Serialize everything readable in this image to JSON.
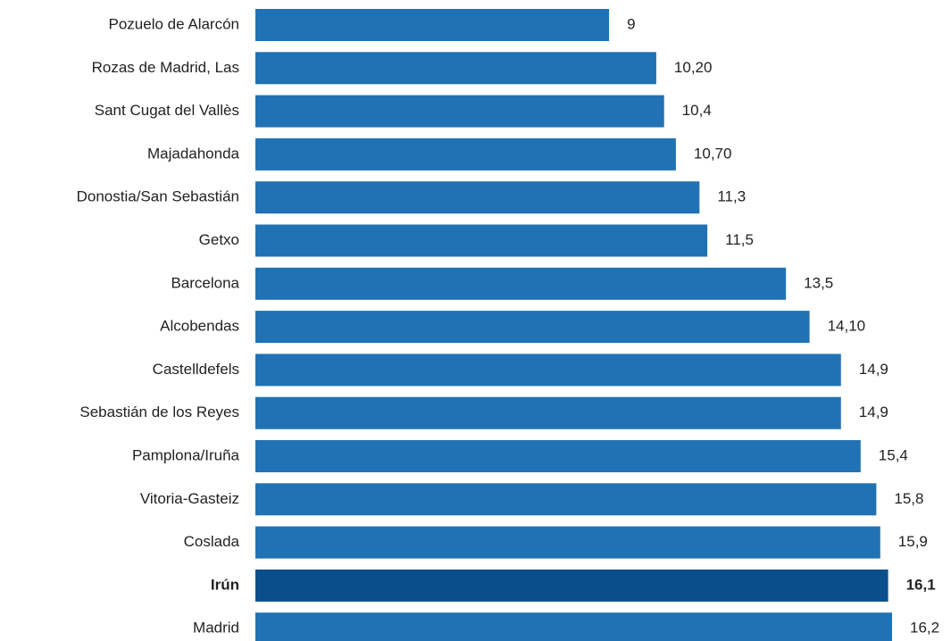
{
  "chart_data": {
    "type": "barh",
    "categories": [
      "Pozuelo de Alarcón",
      "Rozas de Madrid, Las",
      "Sant Cugat del Vallès",
      "Majadahonda",
      "Donostia/San Sebastián",
      "Getxo",
      "Barcelona",
      "Alcobendas",
      "Castelldefels",
      "Sebastián de los Reyes",
      "Pamplona/Iruña",
      "Vitoria-Gasteiz",
      "Coslada",
      "Irún",
      "Madrid"
    ],
    "values": [
      9,
      10.2,
      10.4,
      10.7,
      11.3,
      11.5,
      13.5,
      14.1,
      14.9,
      14.9,
      15.4,
      15.8,
      15.9,
      16.1,
      16.2
    ],
    "value_labels": [
      "9",
      "10,20",
      "10,4",
      "10,70",
      "11,3",
      "11,5",
      "13,5",
      "14,10",
      "14,9",
      "14,9",
      "15,4",
      "15,8",
      "15,9",
      "16,1",
      "16,2"
    ],
    "color": "#2172b4",
    "highlight": "Irún",
    "highlight_color": "#0a4f8b"
  }
}
